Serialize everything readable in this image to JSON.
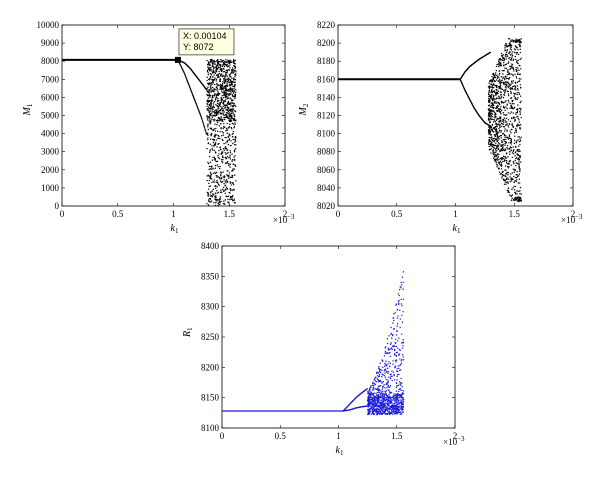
{
  "chart_data": [
    {
      "id": "m1",
      "type": "scatter",
      "xlabel": "k",
      "xlabel_sub": "1",
      "ylabel": "M",
      "ylabel_sub": "1",
      "x_multiplier": "×10",
      "x_multiplier_exp": "−3",
      "xlim": [
        0,
        2
      ],
      "ylim": [
        0,
        10000
      ],
      "xticks": [
        "0",
        "0.5",
        "1",
        "1.5",
        "2"
      ],
      "yticks": [
        "0",
        "1000",
        "2000",
        "3000",
        "4000",
        "5000",
        "6000",
        "7000",
        "8000",
        "9000",
        "10000"
      ],
      "color": "#000000",
      "steady": {
        "x_end": 1.04,
        "y": 8072
      },
      "upper_branch": {
        "x": [
          1.04,
          1.1,
          1.15,
          1.2,
          1.25,
          1.3
        ],
        "y": [
          8072,
          7900,
          7600,
          7200,
          6800,
          6400
        ]
      },
      "lower_branch": {
        "x": [
          1.04,
          1.1,
          1.15,
          1.2,
          1.25,
          1.3
        ],
        "y": [
          8072,
          7300,
          6500,
          5700,
          4900,
          3900
        ]
      },
      "chaos_region": {
        "x_start": 1.3,
        "x_end": 1.56,
        "y_min": 0,
        "y_max": 8100
      },
      "datatip": {
        "x_label": "X: 0.00104",
        "y_label": "Y: 8072",
        "x": 1.04,
        "y": 8072
      }
    },
    {
      "id": "m2",
      "type": "scatter",
      "xlabel": "k",
      "xlabel_sub": "1",
      "ylabel": "M",
      "ylabel_sub": "2",
      "x_multiplier": "×10",
      "x_multiplier_exp": "−3",
      "xlim": [
        0,
        2
      ],
      "ylim": [
        8020,
        8220
      ],
      "xticks": [
        "0",
        "0.5",
        "1",
        "1.5",
        "2"
      ],
      "yticks": [
        "8020",
        "8040",
        "8060",
        "8080",
        "8100",
        "8120",
        "8140",
        "8160",
        "8180",
        "8200",
        "8220"
      ],
      "color": "#000000",
      "steady": {
        "x_end": 1.04,
        "y": 8160
      },
      "upper_branch": {
        "x": [
          1.04,
          1.08,
          1.12,
          1.16,
          1.2,
          1.25,
          1.3
        ],
        "y": [
          8160,
          8168,
          8174,
          8178,
          8182,
          8186,
          8190
        ]
      },
      "lower_branch": {
        "x": [
          1.04,
          1.08,
          1.12,
          1.16,
          1.2,
          1.25,
          1.3
        ],
        "y": [
          8160,
          8148,
          8138,
          8128,
          8120,
          8112,
          8108
        ]
      },
      "chaos_region": {
        "x_start": 1.28,
        "x_end": 1.56,
        "y_min": 8025,
        "y_max": 8205
      }
    },
    {
      "id": "r1",
      "type": "scatter",
      "xlabel": "k",
      "xlabel_sub": "1",
      "ylabel": "R",
      "ylabel_sub": "1",
      "x_multiplier": "×10",
      "x_multiplier_exp": "−3",
      "xlim": [
        0,
        2
      ],
      "ylim": [
        8100,
        8400
      ],
      "xticks": [
        "0",
        "0.5",
        "1",
        "1.5",
        "2"
      ],
      "yticks": [
        "8100",
        "8150",
        "8200",
        "8250",
        "8300",
        "8350",
        "8400"
      ],
      "color": "#1a1adf",
      "steady": {
        "x_end": 1.04,
        "y": 8128
      },
      "upper_branch": {
        "x": [
          1.04,
          1.1,
          1.15,
          1.2,
          1.25
        ],
        "y": [
          8128,
          8140,
          8150,
          8158,
          8165
        ]
      },
      "lower_branch": {
        "x": [
          1.04,
          1.1,
          1.15,
          1.2,
          1.25
        ],
        "y": [
          8128,
          8130,
          8133,
          8135,
          8136
        ]
      },
      "chaos_region": {
        "x_start": 1.25,
        "x_end": 1.56,
        "y_min": 8122,
        "y_max": 8365
      }
    }
  ]
}
